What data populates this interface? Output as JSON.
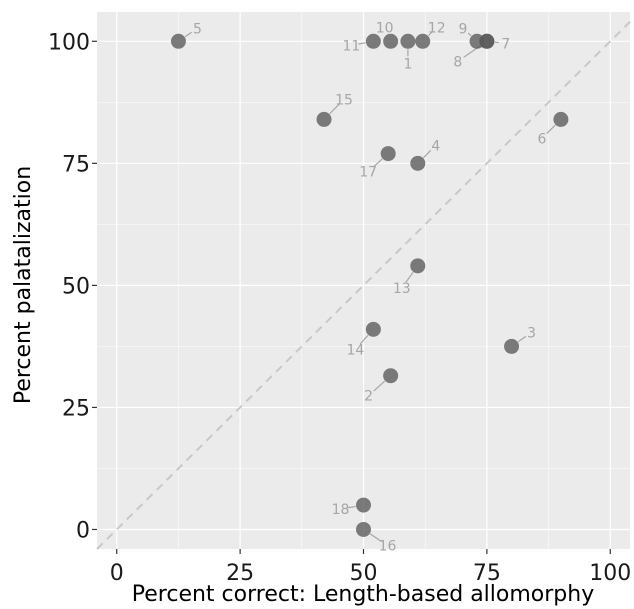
{
  "chart_data": {
    "type": "scatter",
    "title": "",
    "xlabel": "Percent correct: Length-based allomorphy",
    "ylabel": "Percent palatalization",
    "xlim": [
      -4,
      104
    ],
    "ylim": [
      -4,
      106
    ],
    "x_ticks": [
      "0",
      "25",
      "50",
      "75",
      "100"
    ],
    "y_ticks": [
      "0",
      "25",
      "50",
      "75",
      "100"
    ],
    "grid": true,
    "reference_line": "y = x (dashed)",
    "colors": {
      "panel": "#ebebeb",
      "grid": "#ffffff",
      "point": "#595959",
      "point_dark": "#2b2b2b",
      "label": "#a6a6a6",
      "reference_line": "#c8c8c8"
    },
    "points": [
      {
        "label": "1",
        "x": 59,
        "y": 100
      },
      {
        "label": "2",
        "x": 55.5,
        "y": 31.5
      },
      {
        "label": "3",
        "x": 80,
        "y": 37.5
      },
      {
        "label": "4",
        "x": 61,
        "y": 75
      },
      {
        "label": "5",
        "x": 12.5,
        "y": 100
      },
      {
        "label": "6",
        "x": 90,
        "y": 84
      },
      {
        "label": "7",
        "x": 75,
        "y": 100
      },
      {
        "label": "8",
        "x": 75,
        "y": 100
      },
      {
        "label": "9",
        "x": 73,
        "y": 100
      },
      {
        "label": "10",
        "x": 55.5,
        "y": 100
      },
      {
        "label": "11",
        "x": 52,
        "y": 100
      },
      {
        "label": "12",
        "x": 62,
        "y": 100
      },
      {
        "label": "13",
        "x": 61,
        "y": 54
      },
      {
        "label": "14",
        "x": 52,
        "y": 41
      },
      {
        "label": "15",
        "x": 42,
        "y": 84
      },
      {
        "label": "16",
        "x": 50,
        "y": 0
      },
      {
        "label": "17",
        "x": 55,
        "y": 77
      },
      {
        "label": "18",
        "x": 50,
        "y": 5
      }
    ]
  }
}
